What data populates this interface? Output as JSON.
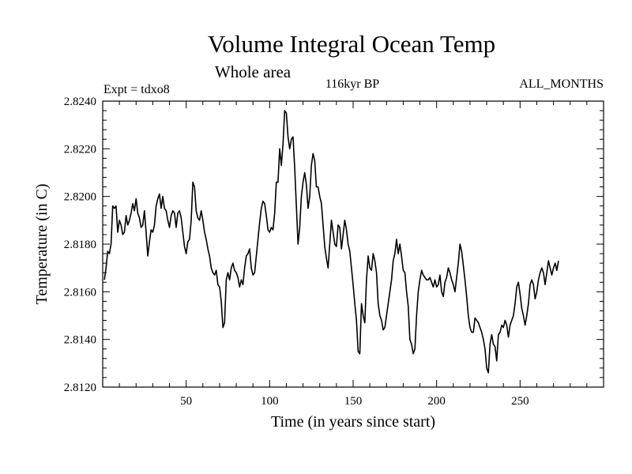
{
  "chart_data": {
    "type": "line",
    "title": "Volume Integral Ocean Temp",
    "subtitle": "Whole area",
    "annotations": {
      "left": "Expt = tdxo8",
      "center": "116kyr BP",
      "right": "ALL_MONTHS"
    },
    "xlabel": "Time (in years since start)",
    "ylabel": "Temperature (in C)",
    "xlim": [
      0,
      300
    ],
    "ylim": [
      2.812,
      2.824
    ],
    "x_ticks": [
      50,
      100,
      150,
      200,
      250
    ],
    "y_ticks": [
      "2.8120",
      "2.8140",
      "2.8160",
      "2.8180",
      "2.8200",
      "2.8220",
      "2.8240"
    ],
    "grid": false,
    "line_color": "#000000",
    "series": [
      {
        "x_start": 1,
        "x_step": 1,
        "values": [
          2.8165,
          2.817,
          2.8177,
          2.8176,
          2.818,
          2.8196,
          2.8195,
          2.8196,
          2.8185,
          2.819,
          2.8188,
          2.8184,
          2.8185,
          2.8192,
          2.8188,
          2.819,
          2.8193,
          2.8197,
          2.8194,
          2.8199,
          2.8193,
          2.8191,
          2.8187,
          2.8188,
          2.8194,
          2.8185,
          2.8175,
          2.8181,
          2.8186,
          2.8185,
          2.8188,
          2.8196,
          2.8199,
          2.8201,
          2.8195,
          2.82,
          2.8195,
          2.8194,
          2.819,
          2.8187,
          2.8192,
          2.8194,
          2.8193,
          2.8187,
          2.8193,
          2.8194,
          2.8191,
          2.8185,
          2.8179,
          2.8176,
          2.8181,
          2.8182,
          2.819,
          2.8206,
          2.8204,
          2.8194,
          2.8191,
          2.819,
          2.8194,
          2.819,
          2.8185,
          2.8182,
          2.8178,
          2.8175,
          2.817,
          2.8168,
          2.8167,
          2.8169,
          2.8163,
          2.8162,
          2.8156,
          2.8145,
          2.8147,
          2.8165,
          2.8168,
          2.8165,
          2.817,
          2.8172,
          2.8169,
          2.8168,
          2.8166,
          2.8162,
          2.8165,
          2.8163,
          2.817,
          2.8175,
          2.8176,
          2.8178,
          2.817,
          2.8167,
          2.8168,
          2.8175,
          2.8182,
          2.8189,
          2.8195,
          2.8198,
          2.8197,
          2.8192,
          2.8186,
          2.8185,
          2.8187,
          2.8186,
          2.8193,
          2.8206,
          2.8206,
          2.822,
          2.8213,
          2.8222,
          2.8236,
          2.8235,
          2.8225,
          2.822,
          2.8224,
          2.8225,
          2.8212,
          2.8196,
          2.818,
          2.8187,
          2.82,
          2.8206,
          2.821,
          2.8205,
          2.8195,
          2.82,
          2.8213,
          2.8218,
          2.8215,
          2.8204,
          2.8204,
          2.82,
          2.8197,
          2.8188,
          2.8179,
          2.8174,
          2.817,
          2.818,
          2.819,
          2.8185,
          2.818,
          2.8179,
          2.8188,
          2.8187,
          2.8178,
          2.8184,
          2.819,
          2.8186,
          2.818,
          2.8177,
          2.817,
          2.8163,
          2.8155,
          2.8148,
          2.8135,
          2.8134,
          2.8155,
          2.815,
          2.8147,
          2.8165,
          2.8175,
          2.817,
          2.8169,
          2.8176,
          2.8173,
          2.8168,
          2.8155,
          2.815,
          2.8148,
          2.8144,
          2.8145,
          2.815,
          2.8155,
          2.816,
          2.8165,
          2.8173,
          2.8176,
          2.8182,
          2.8176,
          2.818,
          2.8175,
          2.8169,
          2.8168,
          2.816,
          2.8154,
          2.814,
          2.8138,
          2.8134,
          2.8136,
          2.815,
          2.816,
          2.8165,
          2.8169,
          2.8167,
          2.8166,
          2.8165,
          2.8165,
          2.8166,
          2.8164,
          2.8162,
          2.8165,
          2.8162,
          2.8163,
          2.8167,
          2.816,
          2.8158,
          2.8164,
          2.8166,
          2.817,
          2.8168,
          2.8165,
          2.8163,
          2.816,
          2.8166,
          2.8172,
          2.818,
          2.8177,
          2.8171,
          2.8165,
          2.8158,
          2.815,
          2.8145,
          2.8143,
          2.8143,
          2.8149,
          2.8148,
          2.8147,
          2.8145,
          2.8143,
          2.814,
          2.8136,
          2.8128,
          2.8126,
          2.8138,
          2.8142,
          2.8138,
          2.8137,
          2.8131,
          2.8142,
          2.8143,
          2.8146,
          2.8145,
          2.8148,
          2.8146,
          2.8141,
          2.8146,
          2.8148,
          2.815,
          2.8155,
          2.8162,
          2.8164,
          2.8159,
          2.8153,
          2.815,
          2.8146,
          2.815,
          2.8155,
          2.8163,
          2.8165,
          2.8163,
          2.8157,
          2.816,
          2.8165,
          2.8168,
          2.817,
          2.8168,
          2.8163,
          2.8168,
          2.8173,
          2.817,
          2.8167,
          2.817,
          2.8172,
          2.8169,
          2.8173
        ]
      }
    ]
  }
}
